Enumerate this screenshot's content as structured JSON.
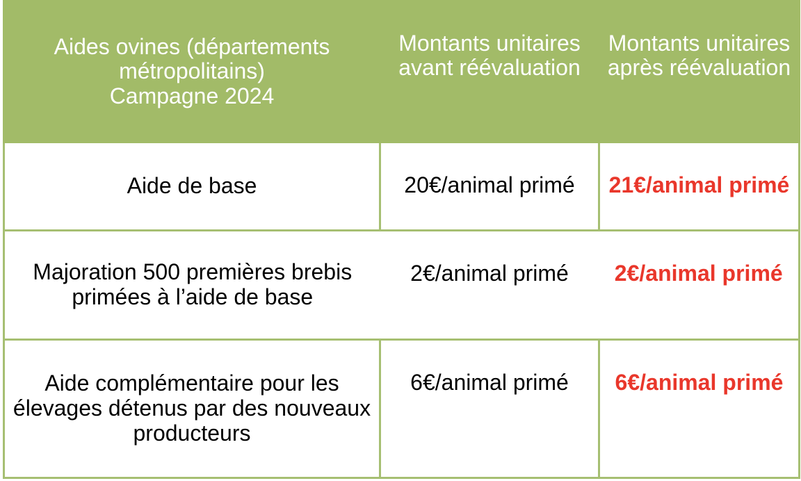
{
  "table": {
    "header": {
      "col1": "Aides ovines (départements\nmétropolitains)\nCampagne 2024",
      "col2": "Montants unitaires\navant réévaluation",
      "col3": "Montants unitaires\naprès réévaluation"
    },
    "rows": [
      {
        "label": "Aide de base",
        "before": "20€/animal primé",
        "after": "21€/animal primé"
      },
      {
        "label": "Majoration 500 premières brebis\nprimées à l’aide de base",
        "before": "2€/animal primé",
        "after": "2€/animal primé"
      },
      {
        "label": "Aide complémentaire pour les\nélevages détenus par des nouveaux\nproducteurs",
        "before": "6€/animal primé",
        "after": "6€/animal primé"
      }
    ],
    "colors": {
      "header_background": "#a2bb68",
      "border_green": "#a6bf72",
      "header_text": "#ffffff",
      "body_text": "#000000",
      "revalued_amount_red": "#e9372b"
    }
  },
  "chart_data": {
    "type": "table",
    "title": "Aides ovines (départements métropolitains) Campagne 2024",
    "columns": [
      "Aides ovines (départements métropolitains) Campagne 2024",
      "Montants unitaires avant réévaluation",
      "Montants unitaires après réévaluation"
    ],
    "rows": [
      [
        "Aide de base",
        "20€/animal primé",
        "21€/animal primé"
      ],
      [
        "Majoration 500 premières brebis primées à l’aide de base",
        "2€/animal primé",
        "2€/animal primé"
      ],
      [
        "Aide complémentaire pour les élevages détenus par des nouveaux producteurs",
        "6€/animal primé",
        "6€/animal primé"
      ]
    ]
  }
}
